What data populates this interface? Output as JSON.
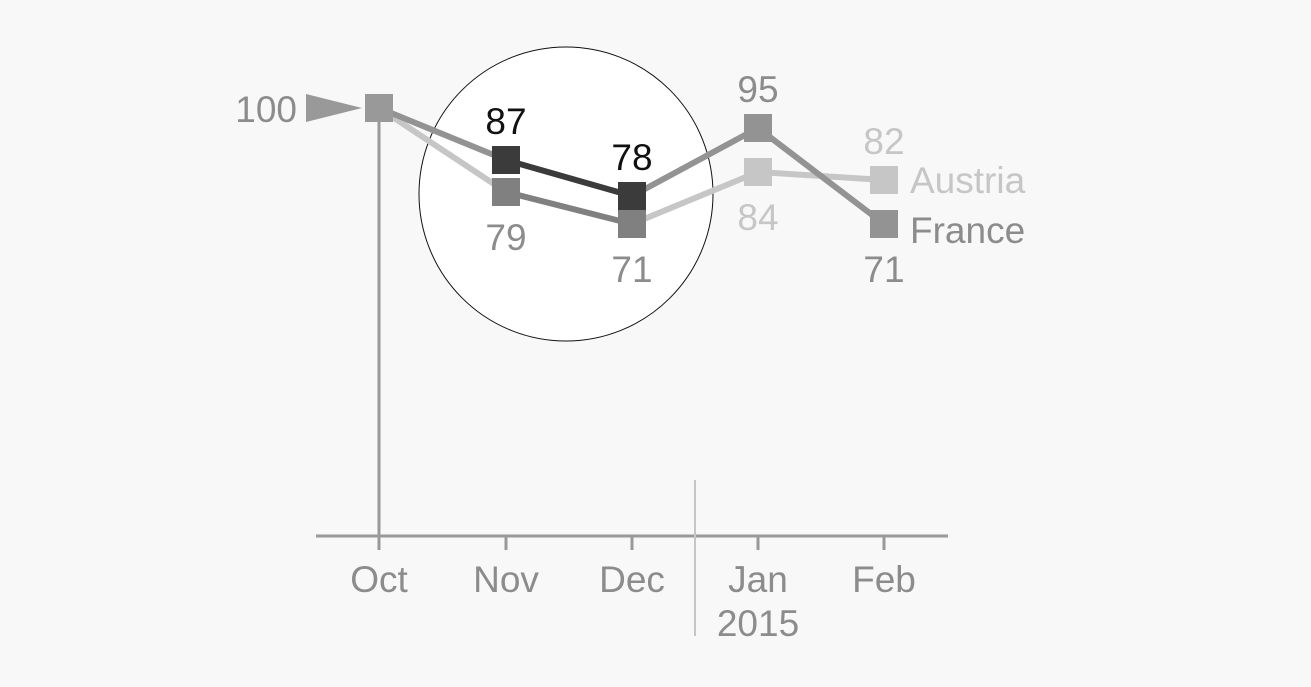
{
  "chart_data": {
    "type": "line",
    "categories": [
      "Oct",
      "Nov",
      "Dec",
      "Jan",
      "Feb"
    ],
    "year_label": "2015",
    "baseline_label": "100",
    "series": [
      {
        "name": "France",
        "values": [
          100,
          87,
          78,
          95,
          71
        ],
        "value_labels": [
          "",
          "87",
          "78",
          "95",
          "71"
        ],
        "label_pos": [
          "",
          "above",
          "above",
          "above",
          "below"
        ],
        "label_colors": [
          "",
          "#111111",
          "#111111",
          "#8c8c8c",
          "#8c8c8c"
        ]
      },
      {
        "name": "Austria",
        "values": [
          100,
          79,
          71,
          84,
          82
        ],
        "value_labels": [
          "",
          "79",
          "71",
          "84",
          "82"
        ],
        "label_pos": [
          "",
          "below",
          "below",
          "below",
          "above"
        ],
        "label_colors": [
          "",
          "#8c8c8c",
          "#8c8c8c",
          "#c6c6c6",
          "#c6c6c6"
        ]
      }
    ],
    "colors": {
      "france": "#939393",
      "france_highlight": "#3b3b3b",
      "austria": "#c6c6c6",
      "austria_highlight": "#808080",
      "axis": "#999999",
      "text": "#8c8c8c",
      "austria_label": "#c6c6c6",
      "france_label": "#8c8c8c"
    },
    "highlight": "Nov–Dec circled",
    "grid": false,
    "legend": "inline labels at line ends (right)"
  }
}
